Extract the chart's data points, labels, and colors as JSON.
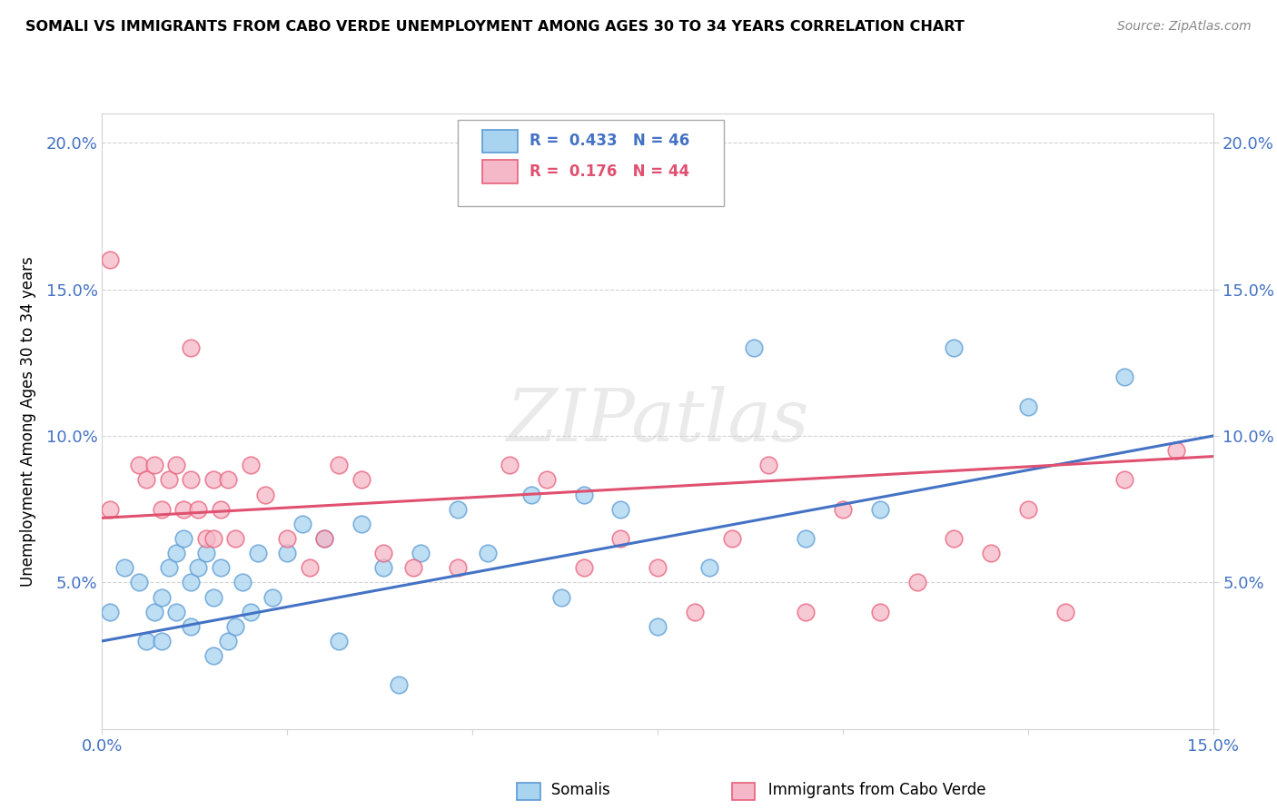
{
  "title": "SOMALI VS IMMIGRANTS FROM CABO VERDE UNEMPLOYMENT AMONG AGES 30 TO 34 YEARS CORRELATION CHART",
  "source": "Source: ZipAtlas.com",
  "ylabel": "Unemployment Among Ages 30 to 34 years",
  "xlim": [
    0.0,
    0.15
  ],
  "ylim": [
    0.0,
    0.21
  ],
  "xticks": [
    0.0,
    0.025,
    0.05,
    0.075,
    0.1,
    0.125,
    0.15
  ],
  "yticks": [
    0.0,
    0.05,
    0.1,
    0.15,
    0.2
  ],
  "blue_R": "0.433",
  "blue_N": "46",
  "pink_R": "0.176",
  "pink_N": "44",
  "blue_color": "#A8D4F0",
  "pink_color": "#F5B8C8",
  "blue_edge_color": "#5B9BD5",
  "pink_edge_color": "#E8607A",
  "blue_line_color": "#4472C4",
  "pink_line_color": "#E05070",
  "watermark": "ZIPatlas",
  "somali_x": [
    0.001,
    0.003,
    0.005,
    0.006,
    0.007,
    0.008,
    0.008,
    0.009,
    0.01,
    0.01,
    0.011,
    0.012,
    0.012,
    0.013,
    0.014,
    0.015,
    0.015,
    0.016,
    0.017,
    0.018,
    0.019,
    0.02,
    0.021,
    0.023,
    0.025,
    0.027,
    0.03,
    0.032,
    0.035,
    0.038,
    0.04,
    0.043,
    0.048,
    0.052,
    0.058,
    0.062,
    0.065,
    0.07,
    0.075,
    0.082,
    0.088,
    0.095,
    0.105,
    0.115,
    0.125,
    0.138
  ],
  "somali_y": [
    0.04,
    0.055,
    0.05,
    0.03,
    0.04,
    0.045,
    0.03,
    0.055,
    0.06,
    0.04,
    0.065,
    0.05,
    0.035,
    0.055,
    0.06,
    0.025,
    0.045,
    0.055,
    0.03,
    0.035,
    0.05,
    0.04,
    0.06,
    0.045,
    0.06,
    0.07,
    0.065,
    0.03,
    0.07,
    0.055,
    0.015,
    0.06,
    0.075,
    0.06,
    0.08,
    0.045,
    0.08,
    0.075,
    0.035,
    0.055,
    0.13,
    0.065,
    0.075,
    0.13,
    0.11,
    0.12
  ],
  "cabo_x": [
    0.001,
    0.005,
    0.006,
    0.007,
    0.008,
    0.009,
    0.01,
    0.011,
    0.012,
    0.013,
    0.014,
    0.015,
    0.015,
    0.016,
    0.017,
    0.018,
    0.02,
    0.022,
    0.025,
    0.028,
    0.03,
    0.032,
    0.035,
    0.038,
    0.042,
    0.048,
    0.055,
    0.06,
    0.065,
    0.07,
    0.075,
    0.08,
    0.085,
    0.09,
    0.095,
    0.1,
    0.105,
    0.11,
    0.115,
    0.12,
    0.125,
    0.13,
    0.138,
    0.145
  ],
  "cabo_y": [
    0.075,
    0.09,
    0.085,
    0.09,
    0.075,
    0.085,
    0.09,
    0.075,
    0.085,
    0.075,
    0.065,
    0.065,
    0.085,
    0.075,
    0.085,
    0.065,
    0.09,
    0.08,
    0.065,
    0.055,
    0.065,
    0.09,
    0.085,
    0.06,
    0.055,
    0.055,
    0.09,
    0.085,
    0.055,
    0.065,
    0.055,
    0.04,
    0.065,
    0.09,
    0.04,
    0.075,
    0.04,
    0.05,
    0.065,
    0.06,
    0.075,
    0.04,
    0.085,
    0.095
  ],
  "cabo_outlier_x": [
    0.001
  ],
  "cabo_outlier_y": [
    0.16
  ],
  "cabo_outlier2_x": [
    0.012
  ],
  "cabo_outlier2_y": [
    0.13
  ],
  "blue_line_x0": 0.0,
  "blue_line_y0": 0.03,
  "blue_line_x1": 0.15,
  "blue_line_y1": 0.1,
  "pink_line_x0": 0.0,
  "pink_line_y0": 0.072,
  "pink_line_x1": 0.15,
  "pink_line_y1": 0.093
}
